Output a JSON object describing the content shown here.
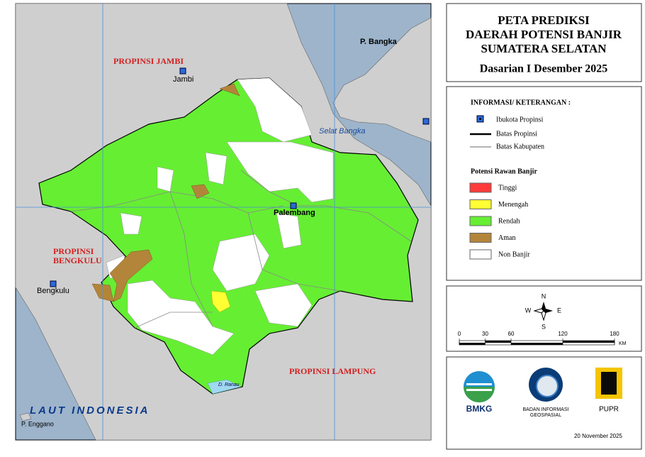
{
  "header": {
    "title": [
      "PETA PREDIKSI",
      "DAERAH POTENSI BANJIR",
      "SUMATERA SELATAN"
    ],
    "period": "Dasarian I Desember 2025"
  },
  "map": {
    "labels": {
      "jambi_province": "PROPINSI JAMBI",
      "jambi": "Jambi",
      "bangka": "P. Bangka",
      "strait": "Selat Bangka",
      "palembang": "Palembang",
      "bengkulu_province_1": "PROPINSI",
      "bengkulu_province_2": "BENGKULU",
      "bengkulu": "Bengkulu",
      "lampung_province": "PROPINSI LAMPUNG",
      "sea": "LAUT INDONESIA",
      "enggano": "P. Enggano",
      "lake": "D. Ranau"
    }
  },
  "legend": {
    "title": "INFORMASI/ KETERANGAN :",
    "capital": "Ibukota Propinsi",
    "province_border": "Batas Propinsi",
    "regency_border": "Batas Kabupaten",
    "risk_title": "Potensi Rawan Banjir",
    "risk": [
      {
        "label": "Tinggi",
        "color": "#ff3b3b"
      },
      {
        "label": "Menengah",
        "color": "#ffff33"
      },
      {
        "label": "Rendah",
        "color": "#66ee33"
      },
      {
        "label": "Aman",
        "color": "#b3853a"
      },
      {
        "label": "Non Banjir",
        "color": "#ffffff"
      }
    ]
  },
  "compass": {
    "north": "N",
    "south": "S",
    "east": "E",
    "west": "W"
  },
  "scale": {
    "ticks": [
      0,
      30,
      60,
      120,
      180
    ],
    "unit": "KM"
  },
  "logos": {
    "bmkg": "BMKG",
    "big_1": "BADAN INFORMASI",
    "big_2": "GEOSPASIAL",
    "pupr": "PUPR"
  },
  "date": "20 November 2025"
}
